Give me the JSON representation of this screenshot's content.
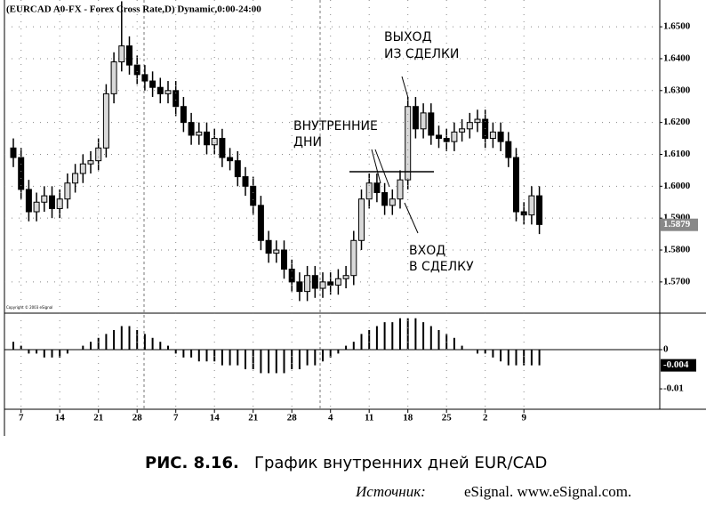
{
  "chart_data": [
    {
      "type": "candlestick",
      "title": "(EURCAD A0-FX - Forex Cross Rate,D) Dynamic,0:00-24:00",
      "copyright": "Copyright © 2003 eSignal",
      "open": [
        1.612,
        1.609,
        1.599,
        1.592,
        1.595,
        1.597,
        1.593,
        1.596,
        1.601,
        1.604,
        1.607,
        1.608,
        1.612,
        1.629,
        1.639,
        1.644,
        1.638,
        1.635,
        1.633,
        1.631,
        1.629,
        1.63,
        1.625,
        1.62,
        1.616,
        1.617,
        1.613,
        1.615,
        1.609,
        1.608,
        1.603,
        1.6,
        1.594,
        1.583,
        1.579,
        1.58,
        1.574,
        1.57,
        1.567,
        1.572,
        1.568,
        1.57,
        1.569,
        1.571,
        1.572,
        1.583,
        1.596,
        1.601,
        1.598,
        1.594,
        1.596,
        1.602,
        1.625,
        1.618,
        1.623,
        1.616,
        1.615,
        1.614,
        1.617,
        1.618,
        1.62,
        1.621,
        1.615,
        1.617,
        1.614,
        1.609,
        1.592,
        1.591,
        1.597
      ],
      "high": [
        1.615,
        1.612,
        1.602,
        1.598,
        1.6,
        1.6,
        1.599,
        1.604,
        1.607,
        1.61,
        1.611,
        1.615,
        1.632,
        1.642,
        1.658,
        1.647,
        1.641,
        1.638,
        1.636,
        1.634,
        1.633,
        1.633,
        1.628,
        1.623,
        1.62,
        1.62,
        1.618,
        1.618,
        1.612,
        1.611,
        1.606,
        1.603,
        1.597,
        1.586,
        1.583,
        1.583,
        1.577,
        1.573,
        1.575,
        1.575,
        1.573,
        1.573,
        1.574,
        1.575,
        1.586,
        1.599,
        1.604,
        1.604,
        1.601,
        1.599,
        1.605,
        1.628,
        1.628,
        1.626,
        1.626,
        1.619,
        1.618,
        1.62,
        1.621,
        1.623,
        1.624,
        1.624,
        1.62,
        1.62,
        1.617,
        1.612,
        1.595,
        1.6,
        1.6
      ],
      "low": [
        1.606,
        1.596,
        1.589,
        1.589,
        1.592,
        1.59,
        1.59,
        1.593,
        1.598,
        1.601,
        1.604,
        1.605,
        1.609,
        1.626,
        1.636,
        1.635,
        1.632,
        1.63,
        1.628,
        1.626,
        1.626,
        1.622,
        1.617,
        1.613,
        1.613,
        1.61,
        1.61,
        1.606,
        1.605,
        1.6,
        1.597,
        1.591,
        1.58,
        1.576,
        1.576,
        1.571,
        1.567,
        1.564,
        1.564,
        1.565,
        1.565,
        1.566,
        1.566,
        1.568,
        1.569,
        1.58,
        1.593,
        1.595,
        1.591,
        1.591,
        1.593,
        1.599,
        1.615,
        1.615,
        1.613,
        1.612,
        1.611,
        1.611,
        1.614,
        1.615,
        1.617,
        1.612,
        1.612,
        1.611,
        1.606,
        1.589,
        1.588,
        1.588,
        1.585
      ],
      "close": [
        1.609,
        1.599,
        1.592,
        1.595,
        1.597,
        1.593,
        1.596,
        1.601,
        1.604,
        1.607,
        1.608,
        1.612,
        1.629,
        1.639,
        1.644,
        1.638,
        1.635,
        1.633,
        1.631,
        1.629,
        1.63,
        1.625,
        1.62,
        1.616,
        1.617,
        1.613,
        1.615,
        1.609,
        1.608,
        1.603,
        1.6,
        1.594,
        1.583,
        1.579,
        1.58,
        1.574,
        1.57,
        1.567,
        1.572,
        1.568,
        1.57,
        1.569,
        1.571,
        1.572,
        1.583,
        1.596,
        1.601,
        1.598,
        1.594,
        1.596,
        1.602,
        1.625,
        1.618,
        1.623,
        1.616,
        1.615,
        1.614,
        1.617,
        1.618,
        1.62,
        1.621,
        1.615,
        1.617,
        1.614,
        1.609,
        1.592,
        1.591,
        1.597,
        1.588
      ],
      "up_color": "#d9d9d9",
      "down_color": "#000000",
      "current_price": {
        "value": 1.5879,
        "label": "1.5879"
      },
      "ylim": [
        1.5602,
        1.6584
      ],
      "yticks": [
        {
          "value": 1.57,
          "label": "1.5700"
        },
        {
          "value": 1.58,
          "label": "1.5800"
        },
        {
          "value": 1.59,
          "label": "1.5900"
        },
        {
          "value": 1.6,
          "label": "1.6000"
        },
        {
          "value": 1.61,
          "label": "1.6100"
        },
        {
          "value": 1.62,
          "label": "1.6200"
        },
        {
          "value": 1.63,
          "label": "1.6300"
        },
        {
          "value": 1.64,
          "label": "1.6400"
        },
        {
          "value": 1.65,
          "label": "1.6500"
        }
      ],
      "grid": true,
      "annotations": [
        [
          "ВЫХОД",
          "ИЗ СДЕЛКИ"
        ],
        [
          "ВНУТРЕННИЕ",
          "ДНИ"
        ],
        [
          "ВХОД",
          "В СДЕЛКУ"
        ]
      ]
    },
    {
      "type": "bar",
      "categories": [
        null,
        "7",
        null,
        null,
        null,
        null,
        "14",
        null,
        null,
        null,
        null,
        "21",
        null,
        null,
        null,
        null,
        "28",
        null,
        null,
        null,
        null,
        "7",
        null,
        null,
        null,
        null,
        "14",
        null,
        null,
        null,
        null,
        "21",
        null,
        null,
        null,
        null,
        "28",
        null,
        null,
        null,
        null,
        "4",
        null,
        null,
        null,
        null,
        "11",
        null,
        null,
        null,
        null,
        "18",
        null,
        null,
        null,
        null,
        "25",
        null,
        null,
        null,
        null,
        "2",
        null,
        null,
        null,
        null,
        "9",
        null,
        null
      ],
      "values": [
        0.002,
        0.001,
        -0.001,
        -0.001,
        -0.002,
        -0.002,
        -0.002,
        -0.001,
        0.0,
        0.001,
        0.002,
        0.003,
        0.004,
        0.005,
        0.006,
        0.006,
        0.005,
        0.004,
        0.003,
        0.002,
        0.001,
        -0.001,
        -0.002,
        -0.002,
        -0.003,
        -0.003,
        -0.003,
        -0.004,
        -0.004,
        -0.004,
        -0.005,
        -0.005,
        -0.006,
        -0.006,
        -0.006,
        -0.006,
        -0.005,
        -0.005,
        -0.004,
        -0.004,
        -0.003,
        -0.002,
        -0.001,
        0.001,
        0.002,
        0.004,
        0.005,
        0.006,
        0.007,
        0.007,
        0.008,
        0.008,
        0.008,
        0.007,
        0.006,
        0.005,
        0.004,
        0.003,
        0.001,
        0.0,
        -0.001,
        -0.001,
        -0.002,
        -0.003,
        -0.004,
        -0.004,
        -0.004,
        -0.004,
        -0.004
      ],
      "color": "#000000",
      "current_value": -0.004,
      "ylim": [
        -0.0152,
        0.0093
      ],
      "yticks": [
        -0.01,
        0
      ]
    }
  ],
  "caption": {
    "figure": "РИС. 8.16.",
    "text": "График внутренних дней EUR/CAD"
  },
  "source": {
    "label": "Источник:",
    "text": "eSignal. www.eSignal.com."
  }
}
